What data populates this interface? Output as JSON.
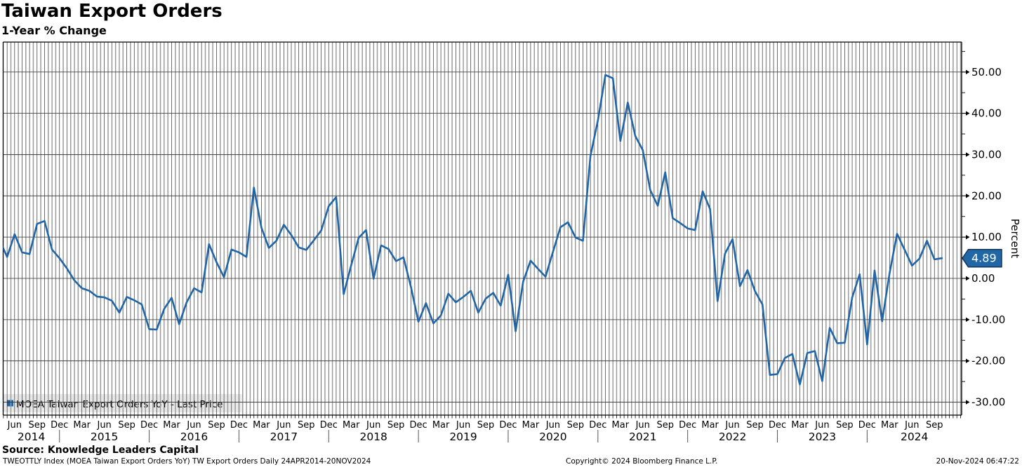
{
  "header": {
    "title": "Taiwan Export Orders",
    "subtitle": "1-Year % Change"
  },
  "legend": {
    "label": "MOEA Taiwan Export Orders YoY - Last Price",
    "marker_color": "#2065a8",
    "box_color": "#e9e9e9"
  },
  "last_price_badge": {
    "value": "4.89",
    "fill": "#2166a5",
    "border": "#12365f",
    "text_color": "#ffffff"
  },
  "source_line": "Source: Knowledge Leaders Capital",
  "footer": {
    "left": "TWEOTTLY Index (MOEA Taiwan Export Orders YoY) TW Export Orders  Daily 24APR2014-20NOV2024",
    "center": "Copyright© 2024 Bloomberg Finance L.P.",
    "right": "20-Nov-2024 06:47:22"
  },
  "chart_data": {
    "type": "line",
    "title": "Taiwan Export Orders",
    "subtitle": "1-Year % Change",
    "ylabel": "Percent",
    "ylim": [
      -33,
      57
    ],
    "y_ticks": [
      50,
      40,
      30,
      20,
      10,
      0,
      -10,
      -20,
      -30
    ],
    "y_minor_ticks": [
      55,
      45,
      35,
      25,
      15,
      5,
      -5,
      -15,
      -25
    ],
    "grid": "vertical semi-monthly lines + horizontal lines every 10 units",
    "legend_position": "bottom-left",
    "line_color": "#2065a8",
    "x_start_month": "2014-04",
    "x_end_month": "2024-10",
    "x_tick_labels": [
      "Jun",
      "Sep",
      "Dec",
      "Mar",
      "Jun",
      "Sep",
      "Dec",
      "Mar",
      "Jun",
      "Sep",
      "Dec",
      "Mar",
      "Jun",
      "Sep",
      "Dec",
      "Mar",
      "Jun",
      "Sep",
      "Dec",
      "Mar",
      "Jun",
      "Sep",
      "Dec",
      "Mar",
      "Jun",
      "Sep",
      "Dec",
      "Mar",
      "Jun",
      "Sep",
      "Dec",
      "Mar",
      "Jun",
      "Sep",
      "Dec",
      "Mar",
      "Jun",
      "Sep",
      "Dec",
      "Mar",
      "Jun",
      "Sep"
    ],
    "x_year_labels": [
      "2014",
      "2015",
      "2016",
      "2017",
      "2018",
      "2019",
      "2020",
      "2021",
      "2022",
      "2023",
      "2024"
    ],
    "series": [
      {
        "name": "MOEA Taiwan Export Orders YoY",
        "last_price": 4.89,
        "values": [
          9.2,
          5.2,
          10.7,
          6.3,
          5.9,
          13.2,
          13.9,
          7.0,
          4.9,
          2.4,
          -0.5,
          -2.4,
          -3.0,
          -4.4,
          -4.6,
          -5.4,
          -8.3,
          -4.5,
          -5.3,
          -6.3,
          -12.3,
          -12.4,
          -7.4,
          -4.7,
          -11.1,
          -5.8,
          -2.4,
          -3.4,
          8.3,
          3.9,
          0.3,
          7.0,
          6.3,
          5.2,
          22.0,
          12.3,
          7.4,
          9.1,
          13.0,
          10.5,
          7.5,
          6.9,
          9.2,
          11.6,
          17.5,
          19.7,
          -3.8,
          3.1,
          9.8,
          11.7,
          -0.1,
          8.0,
          7.1,
          4.2,
          5.1,
          -2.1,
          -10.5,
          -6.0,
          -10.9,
          -9.0,
          -3.7,
          -5.8,
          -4.5,
          -3.0,
          -8.3,
          -4.9,
          -3.5,
          -6.6,
          0.9,
          -12.8,
          -0.8,
          4.3,
          2.3,
          0.4,
          6.5,
          12.4,
          13.6,
          9.9,
          9.1,
          29.7,
          38.3,
          49.3,
          48.5,
          33.3,
          42.6,
          34.5,
          31.1,
          21.4,
          17.6,
          25.7,
          14.6,
          13.4,
          12.1,
          11.7,
          21.1,
          16.8,
          -5.5,
          6.0,
          9.5,
          -1.9,
          2.0,
          -3.1,
          -6.3,
          -23.4,
          -23.2,
          -19.3,
          -18.3,
          -25.7,
          -18.1,
          -17.6,
          -24.9,
          -12.0,
          -15.7,
          -15.6,
          -4.6,
          1.0,
          -16.0,
          1.9,
          -10.4,
          1.2,
          10.8,
          7.0,
          3.1,
          4.8,
          9.1,
          4.6,
          4.89
        ]
      }
    ]
  }
}
